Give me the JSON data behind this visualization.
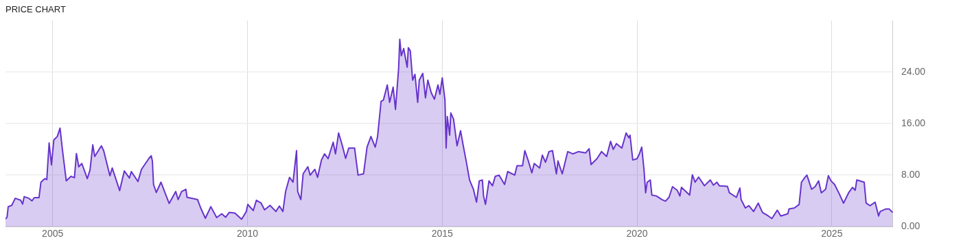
{
  "chart_data": {
    "type": "area",
    "title": "PRICE CHART",
    "x": [
      2003.79,
      2003.83,
      2003.86,
      2003.95,
      2004.04,
      2004.18,
      2004.23,
      2004.27,
      2004.39,
      2004.47,
      2004.53,
      2004.65,
      2004.7,
      2004.8,
      2004.85,
      2004.91,
      2004.97,
      2005.03,
      2005.12,
      2005.19,
      2005.25,
      2005.35,
      2005.47,
      2005.56,
      2005.61,
      2005.67,
      2005.75,
      2005.89,
      2005.96,
      2006.03,
      2006.08,
      2006.25,
      2006.31,
      2006.47,
      2006.53,
      2006.72,
      2006.84,
      2006.97,
      2007.02,
      2007.19,
      2007.28,
      2007.46,
      2007.53,
      2007.56,
      2007.59,
      2007.66,
      2007.78,
      2007.99,
      2008.16,
      2008.22,
      2008.31,
      2008.42,
      2008.45,
      2008.72,
      2008.8,
      2008.92,
      2009.06,
      2009.21,
      2009.34,
      2009.44,
      2009.53,
      2009.68,
      2009.85,
      2009.97,
      2010.01,
      2010.15,
      2010.23,
      2010.35,
      2010.44,
      2010.58,
      2010.73,
      2010.82,
      2010.91,
      2010.98,
      2011.08,
      2011.17,
      2011.26,
      2011.29,
      2011.37,
      2011.43,
      2011.55,
      2011.61,
      2011.73,
      2011.8,
      2011.9,
      2011.98,
      2012.07,
      2012.2,
      2012.26,
      2012.34,
      2012.43,
      2012.52,
      2012.6,
      2012.75,
      2012.84,
      2012.98,
      2013.07,
      2013.17,
      2013.28,
      2013.34,
      2013.43,
      2013.49,
      2013.59,
      2013.65,
      2013.74,
      2013.8,
      2013.88,
      2013.91,
      2013.95,
      2014.01,
      2014.1,
      2014.13,
      2014.18,
      2014.24,
      2014.3,
      2014.37,
      2014.41,
      2014.5,
      2014.57,
      2014.63,
      2014.72,
      2014.8,
      2014.89,
      2014.94,
      2015.0,
      2015.07,
      2015.1,
      2015.13,
      2015.19,
      2015.22,
      2015.29,
      2015.38,
      2015.47,
      2015.54,
      2015.62,
      2015.7,
      2015.8,
      2015.88,
      2015.95,
      2016.03,
      2016.06,
      2016.11,
      2016.2,
      2016.29,
      2016.36,
      2016.46,
      2016.6,
      2016.68,
      2016.86,
      2016.92,
      2017.06,
      2017.12,
      2017.21,
      2017.3,
      2017.36,
      2017.5,
      2017.57,
      2017.65,
      2017.74,
      2017.83,
      2017.93,
      2017.97,
      2018.08,
      2018.22,
      2018.35,
      2018.5,
      2018.68,
      2018.77,
      2018.82,
      2018.97,
      2019.09,
      2019.22,
      2019.32,
      2019.39,
      2019.47,
      2019.61,
      2019.72,
      2019.79,
      2019.82,
      2019.89,
      2020.0,
      2020.06,
      2020.12,
      2020.18,
      2020.22,
      2020.26,
      2020.34,
      2020.38,
      2020.5,
      2020.64,
      2020.73,
      2020.82,
      2020.91,
      2021.03,
      2021.1,
      2021.14,
      2021.35,
      2021.42,
      2021.49,
      2021.58,
      2021.73,
      2021.88,
      2021.96,
      2022.05,
      2022.11,
      2022.32,
      2022.37,
      2022.55,
      2022.64,
      2022.67,
      2022.78,
      2022.87,
      2022.99,
      2023.11,
      2023.22,
      2023.37,
      2023.46,
      2023.6,
      2023.69,
      2023.87,
      2023.9,
      2024.04,
      2024.16,
      2024.22,
      2024.31,
      2024.36,
      2024.48,
      2024.57,
      2024.66,
      2024.73,
      2024.84,
      2024.91,
      2024.98,
      2025.07,
      2025.19,
      2025.3,
      2025.43,
      2025.53,
      2025.6,
      2025.64,
      2025.83,
      2025.88,
      2025.98,
      2026.11,
      2026.2,
      2026.24,
      2026.39,
      2026.47,
      2026.56
    ],
    "series": [
      {
        "color": "#6633cc",
        "values": [
          1.2,
          1.45,
          3.1,
          3.3,
          4.4,
          4.1,
          3.5,
          4.65,
          4.4,
          4.0,
          4.5,
          4.5,
          6.9,
          7.45,
          7.3,
          13.0,
          9.6,
          13.45,
          14.0,
          15.3,
          12.0,
          7.1,
          7.8,
          7.6,
          11.35,
          9.3,
          9.8,
          7.45,
          8.8,
          12.7,
          10.9,
          12.55,
          11.8,
          7.9,
          9.1,
          5.6,
          8.65,
          7.55,
          8.55,
          7.0,
          8.9,
          10.5,
          11.0,
          10.2,
          6.55,
          5.3,
          6.9,
          3.6,
          5.45,
          4.2,
          5.45,
          5.8,
          4.55,
          4.2,
          2.9,
          1.3,
          3.1,
          1.4,
          2.0,
          1.45,
          2.2,
          2.1,
          1.15,
          2.35,
          3.45,
          2.5,
          4.1,
          3.65,
          2.6,
          3.3,
          2.35,
          3.2,
          2.35,
          5.45,
          7.65,
          6.9,
          11.8,
          5.45,
          4.2,
          8.2,
          9.3,
          8.0,
          8.9,
          7.65,
          10.35,
          11.3,
          10.55,
          13.1,
          11.3,
          14.55,
          12.7,
          10.6,
          12.2,
          12.2,
          8.0,
          8.2,
          12.35,
          14.0,
          12.35,
          14.0,
          19.45,
          19.65,
          22.0,
          19.3,
          21.65,
          18.2,
          24.55,
          29.1,
          26.55,
          27.65,
          24.75,
          27.8,
          27.3,
          22.75,
          23.65,
          19.3,
          22.75,
          23.8,
          20.0,
          22.75,
          20.75,
          19.8,
          22.0,
          20.55,
          23.1,
          19.65,
          12.2,
          17.1,
          14.2,
          17.65,
          16.7,
          12.55,
          14.9,
          12.55,
          10.0,
          7.25,
          5.8,
          3.8,
          7.1,
          7.25,
          4.75,
          3.45,
          7.1,
          6.35,
          7.8,
          8.0,
          6.55,
          8.55,
          8.0,
          9.45,
          9.45,
          11.8,
          10.2,
          8.35,
          9.8,
          9.1,
          11.1,
          10.0,
          11.65,
          11.8,
          8.2,
          10.2,
          8.2,
          11.65,
          11.3,
          11.65,
          11.45,
          12.1,
          9.65,
          10.55,
          11.65,
          10.9,
          13.25,
          12.0,
          12.9,
          12.2,
          14.55,
          13.8,
          14.2,
          10.35,
          10.55,
          11.3,
          12.35,
          8.75,
          5.25,
          6.9,
          7.25,
          4.9,
          4.75,
          4.2,
          3.95,
          4.55,
          6.2,
          5.65,
          4.75,
          6.1,
          4.9,
          8.05,
          6.9,
          7.7,
          6.35,
          7.25,
          6.45,
          6.9,
          6.35,
          6.25,
          5.25,
          4.55,
          6.0,
          4.2,
          2.9,
          3.25,
          2.35,
          3.65,
          2.2,
          1.65,
          1.25,
          2.55,
          1.65,
          2.0,
          2.75,
          2.9,
          3.45,
          6.9,
          7.65,
          8.0,
          5.8,
          6.2,
          7.1,
          5.25,
          5.8,
          7.9,
          7.1,
          6.55,
          5.1,
          3.65,
          5.25,
          6.1,
          5.65,
          7.25,
          6.9,
          3.65,
          3.25,
          3.8,
          1.65,
          2.35,
          2.75,
          2.75,
          2.2
        ]
      }
    ],
    "xlim": [
      2003.79,
      2026.57
    ],
    "xticks": [
      2005,
      2010,
      2015,
      2020,
      2025
    ],
    "ylim": [
      0,
      32
    ],
    "yticks": [
      {
        "value": 0,
        "label": "0.00"
      },
      {
        "value": 8,
        "label": "8.00"
      },
      {
        "value": 16,
        "label": "16.00"
      },
      {
        "value": 24,
        "label": "24.00"
      }
    ],
    "grid": true,
    "legend": false
  }
}
